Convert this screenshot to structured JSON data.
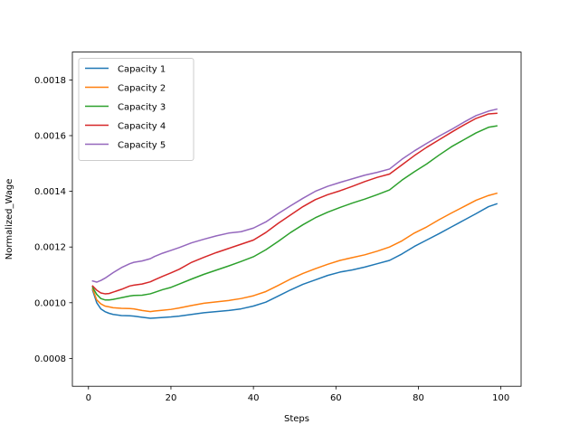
{
  "chart_data": {
    "type": "line",
    "title": "",
    "xlabel": "Steps",
    "ylabel": "Normalized_Wage",
    "xlim": [
      -3.9,
      104.9
    ],
    "ylim": [
      0.0007,
      0.0019
    ],
    "xticks": [
      0,
      20,
      40,
      60,
      80,
      100
    ],
    "xtick_labels": [
      "0",
      "20",
      "40",
      "60",
      "80",
      "100"
    ],
    "yticks": [
      0.0008,
      0.001,
      0.0012,
      0.0014,
      0.0016,
      0.0018
    ],
    "ytick_labels": [
      "0.0008",
      "0.0010",
      "0.0012",
      "0.0014",
      "0.0016",
      "0.0018"
    ],
    "grid": false,
    "legend_position": "top-left",
    "series": [
      {
        "name": "Capacity 1",
        "color": "#1f77b4",
        "x": [
          1,
          2,
          3,
          4,
          5,
          6,
          8,
          10,
          11,
          13,
          15,
          16,
          18,
          20,
          22,
          25,
          28,
          31,
          34,
          37,
          40,
          43,
          46,
          49,
          52,
          55,
          58,
          61,
          64,
          67,
          70,
          73,
          76,
          79,
          82,
          85,
          88,
          91,
          94,
          97,
          99
        ],
        "values": [
          0.001045,
          0.001,
          0.000978,
          0.000968,
          0.000962,
          0.000958,
          0.000954,
          0.000953,
          0.000952,
          0.000948,
          0.000944,
          0.000945,
          0.000947,
          0.000949,
          0.000952,
          0.000958,
          0.000964,
          0.000968,
          0.000972,
          0.000978,
          0.000988,
          0.001002,
          0.001024,
          0.001046,
          0.001066,
          0.001082,
          0.001098,
          0.00111,
          0.001118,
          0.001128,
          0.00114,
          0.001152,
          0.001175,
          0.001202,
          0.001225,
          0.001248,
          0.001272,
          0.001296,
          0.00132,
          0.001345,
          0.001355
        ]
      },
      {
        "name": "Capacity 2",
        "color": "#ff7f0e",
        "x": [
          1,
          2,
          3,
          4,
          5,
          6,
          8,
          10,
          11,
          13,
          15,
          16,
          18,
          20,
          22,
          25,
          28,
          31,
          34,
          37,
          40,
          43,
          46,
          49,
          52,
          55,
          58,
          61,
          64,
          67,
          70,
          73,
          76,
          79,
          82,
          85,
          88,
          91,
          94,
          97,
          99
        ],
        "values": [
          0.00105,
          0.00101,
          0.000996,
          0.000988,
          0.000985,
          0.000982,
          0.00098,
          0.000979,
          0.000978,
          0.000972,
          0.000968,
          0.00097,
          0.000973,
          0.000976,
          0.000981,
          0.00099,
          0.000998,
          0.001003,
          0.001008,
          0.001015,
          0.001025,
          0.00104,
          0.001062,
          0.001085,
          0.001105,
          0.001122,
          0.001138,
          0.001152,
          0.001162,
          0.001172,
          0.001185,
          0.0012,
          0.001222,
          0.00125,
          0.001272,
          0.001298,
          0.001322,
          0.001345,
          0.001368,
          0.001385,
          0.001393
        ]
      },
      {
        "name": "Capacity 3",
        "color": "#2ca02c",
        "x": [
          1,
          2,
          3,
          4,
          5,
          6,
          8,
          10,
          11,
          13,
          15,
          16,
          18,
          20,
          22,
          25,
          28,
          31,
          34,
          37,
          40,
          43,
          46,
          49,
          52,
          55,
          58,
          61,
          64,
          67,
          70,
          73,
          76,
          79,
          82,
          85,
          88,
          91,
          94,
          97,
          99
        ],
        "values": [
          0.001055,
          0.00103,
          0.001015,
          0.00101,
          0.00101,
          0.001012,
          0.001018,
          0.001024,
          0.001026,
          0.001027,
          0.001032,
          0.001037,
          0.001047,
          0.001055,
          0.001067,
          0.001085,
          0.001102,
          0.001117,
          0.001132,
          0.001148,
          0.001165,
          0.00119,
          0.00122,
          0.001252,
          0.00128,
          0.001305,
          0.001325,
          0.001342,
          0.001358,
          0.001372,
          0.001388,
          0.001405,
          0.00144,
          0.00147,
          0.001498,
          0.00153,
          0.00156,
          0.001585,
          0.00161,
          0.00163,
          0.001635
        ]
      },
      {
        "name": "Capacity 4",
        "color": "#d62728",
        "x": [
          1,
          2,
          3,
          4,
          5,
          6,
          8,
          10,
          11,
          13,
          15,
          16,
          18,
          20,
          22,
          25,
          28,
          31,
          34,
          37,
          40,
          43,
          46,
          49,
          52,
          55,
          58,
          61,
          64,
          67,
          70,
          73,
          76,
          79,
          82,
          85,
          88,
          91,
          94,
          97,
          99
        ],
        "values": [
          0.00106,
          0.001045,
          0.001035,
          0.001032,
          0.001033,
          0.001038,
          0.001048,
          0.00106,
          0.001063,
          0.001067,
          0.001075,
          0.001082,
          0.001095,
          0.001107,
          0.00112,
          0.001145,
          0.001163,
          0.00118,
          0.001195,
          0.00121,
          0.001225,
          0.001252,
          0.001285,
          0.001315,
          0.001345,
          0.00137,
          0.001388,
          0.001402,
          0.001418,
          0.001435,
          0.00145,
          0.001462,
          0.001495,
          0.001528,
          0.001558,
          0.001585,
          0.001612,
          0.001638,
          0.001662,
          0.001678,
          0.00168
        ]
      },
      {
        "name": "Capacity 5",
        "color": "#9467bd",
        "x": [
          1,
          2,
          3,
          4,
          5,
          6,
          8,
          10,
          11,
          13,
          15,
          16,
          18,
          20,
          22,
          25,
          28,
          31,
          34,
          37,
          40,
          43,
          46,
          49,
          52,
          55,
          58,
          61,
          64,
          67,
          70,
          73,
          76,
          79,
          82,
          85,
          88,
          91,
          94,
          97,
          99
        ],
        "values": [
          0.001078,
          0.001074,
          0.00108,
          0.001088,
          0.001098,
          0.001108,
          0.001126,
          0.00114,
          0.001145,
          0.00115,
          0.001158,
          0.001166,
          0.001178,
          0.001188,
          0.001198,
          0.001215,
          0.001228,
          0.00124,
          0.00125,
          0.001255,
          0.001268,
          0.00129,
          0.00132,
          0.001348,
          0.001375,
          0.0014,
          0.001418,
          0.001432,
          0.001445,
          0.001458,
          0.001468,
          0.00148,
          0.001515,
          0.001545,
          0.001572,
          0.001598,
          0.001622,
          0.001648,
          0.001672,
          0.001688,
          0.001695
        ]
      }
    ]
  }
}
